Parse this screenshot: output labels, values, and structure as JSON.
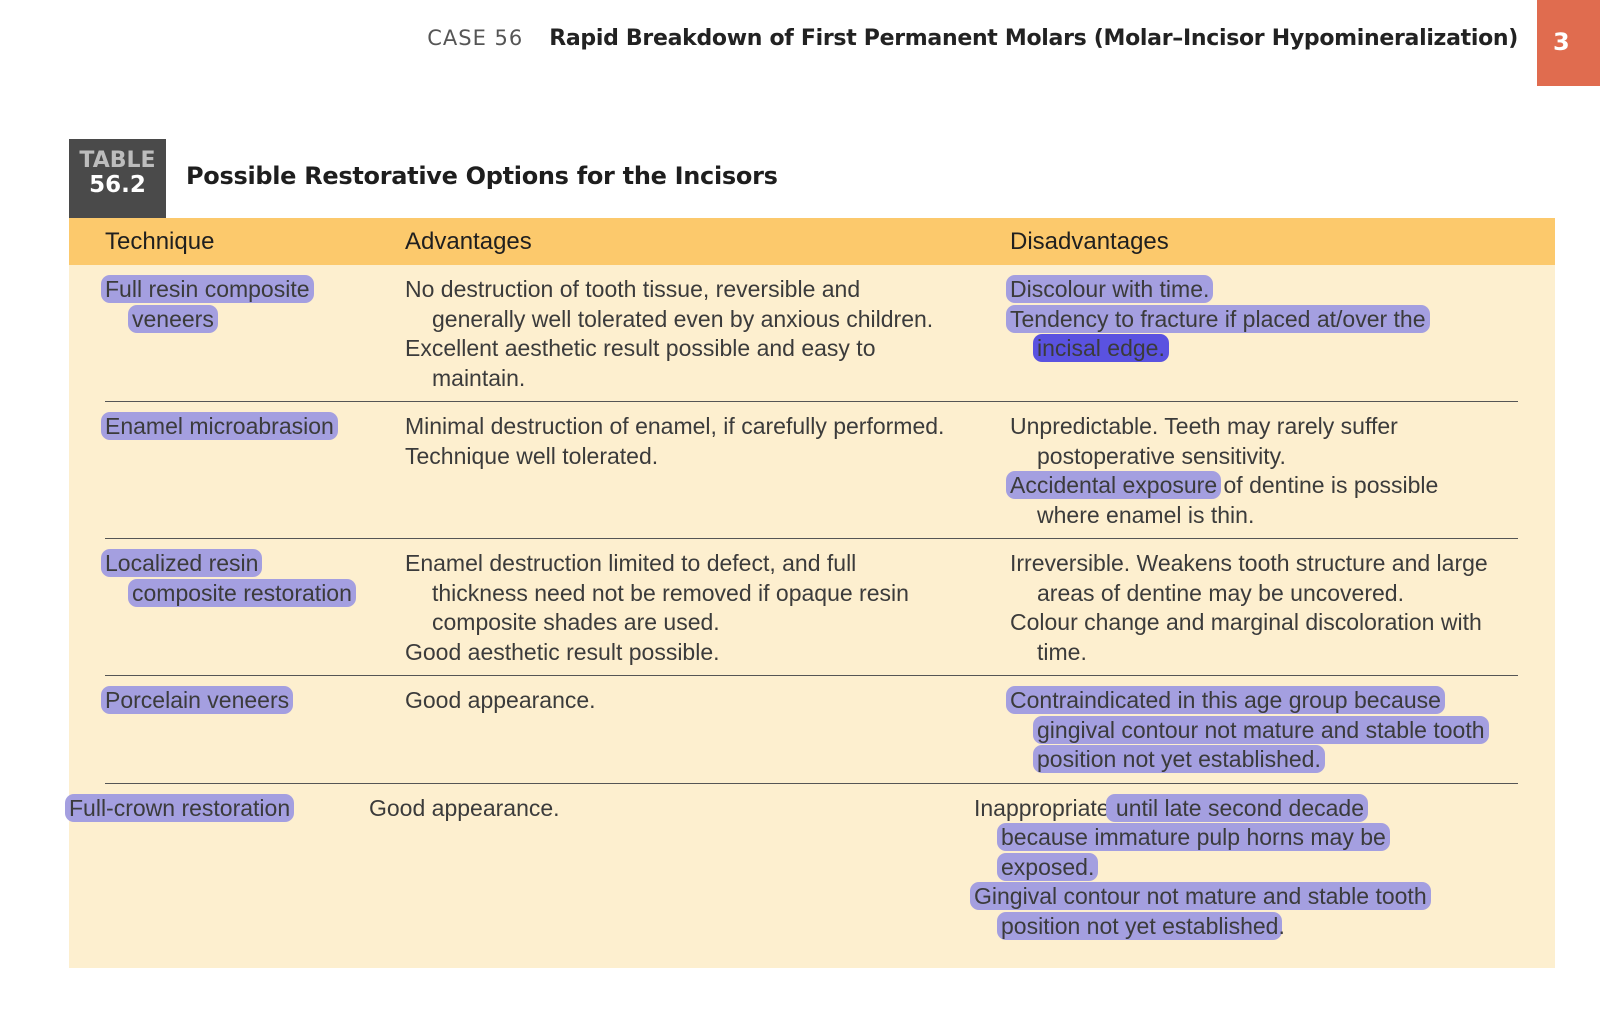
{
  "running_header": {
    "case_label": "CASE  56",
    "title": "Rapid Breakdown of First Permanent Molars (Molar–Incisor Hypomineralization)",
    "page_number": "3"
  },
  "table": {
    "badge_label": "TABLE",
    "badge_number": "56.2",
    "title": "Possible Restorative Options for the Incisors",
    "columns": [
      "Technique",
      "Advantages",
      "Disadvantages"
    ],
    "colors": {
      "header": "#fcc96c",
      "body": "#fdefcf",
      "highlight": "#a49fe0",
      "highlight_strong": "#5a52e0",
      "page_tab": "#e06c4f"
    },
    "rows": [
      {
        "technique": [
          {
            "indent": false,
            "segs": [
              {
                "t": "Full resin composite",
                "h": "hl"
              }
            ]
          },
          {
            "indent": true,
            "segs": [
              {
                "t": "veneers",
                "h": "hl"
              }
            ]
          }
        ],
        "advantages": [
          {
            "indent": false,
            "segs": [
              {
                "t": "No destruction of tooth tissue, reversible and",
                "h": ""
              }
            ]
          },
          {
            "indent": true,
            "segs": [
              {
                "t": "generally well tolerated even by anxious children.",
                "h": ""
              }
            ]
          },
          {
            "indent": false,
            "segs": [
              {
                "t": "Excellent aesthetic result possible and easy to",
                "h": ""
              }
            ]
          },
          {
            "indent": true,
            "segs": [
              {
                "t": "maintain.",
                "h": ""
              }
            ]
          }
        ],
        "disadvantages": [
          {
            "indent": false,
            "segs": [
              {
                "t": "Discolour with time.",
                "h": "hl"
              }
            ]
          },
          {
            "indent": false,
            "segs": [
              {
                "t": "Tendency to fracture if placed at/over the",
                "h": "hl"
              }
            ]
          },
          {
            "indent": true,
            "segs": [
              {
                "t": "incisal edge.",
                "h": "hl2"
              }
            ]
          }
        ]
      },
      {
        "technique": [
          {
            "indent": false,
            "segs": [
              {
                "t": "Enamel microabrasion",
                "h": "hl"
              }
            ]
          }
        ],
        "advantages": [
          {
            "indent": false,
            "segs": [
              {
                "t": "Minimal destruction of enamel, if carefully performed.",
                "h": ""
              }
            ]
          },
          {
            "indent": false,
            "segs": [
              {
                "t": "Technique well tolerated.",
                "h": ""
              }
            ]
          }
        ],
        "disadvantages": [
          {
            "indent": false,
            "segs": [
              {
                "t": "Unpredictable. Teeth may rarely suffer",
                "h": ""
              }
            ]
          },
          {
            "indent": true,
            "segs": [
              {
                "t": "postoperative sensitivity.",
                "h": ""
              }
            ]
          },
          {
            "indent": false,
            "segs": [
              {
                "t": "Accidental exposure",
                "h": "hl"
              },
              {
                "t": " of dentine is possible",
                "h": ""
              }
            ]
          },
          {
            "indent": true,
            "segs": [
              {
                "t": "where enamel is thin.",
                "h": ""
              }
            ]
          }
        ]
      },
      {
        "technique": [
          {
            "indent": false,
            "segs": [
              {
                "t": "Localized resin",
                "h": "hl"
              }
            ]
          },
          {
            "indent": true,
            "segs": [
              {
                "t": "composite restoration",
                "h": "hl"
              }
            ]
          }
        ],
        "advantages": [
          {
            "indent": false,
            "segs": [
              {
                "t": "Enamel destruction limited to defect, and full",
                "h": ""
              }
            ]
          },
          {
            "indent": true,
            "segs": [
              {
                "t": "thickness need not be removed if opaque resin",
                "h": ""
              }
            ]
          },
          {
            "indent": true,
            "segs": [
              {
                "t": "composite shades are used.",
                "h": ""
              }
            ]
          },
          {
            "indent": false,
            "segs": [
              {
                "t": "Good aesthetic result possible.",
                "h": ""
              }
            ]
          }
        ],
        "disadvantages": [
          {
            "indent": false,
            "segs": [
              {
                "t": "Irreversible. Weakens tooth structure and large",
                "h": ""
              }
            ]
          },
          {
            "indent": true,
            "segs": [
              {
                "t": "areas of dentine may be uncovered.",
                "h": ""
              }
            ]
          },
          {
            "indent": false,
            "segs": [
              {
                "t": "Colour change and marginal discoloration with",
                "h": ""
              }
            ]
          },
          {
            "indent": true,
            "segs": [
              {
                "t": "time.",
                "h": ""
              }
            ]
          }
        ]
      },
      {
        "technique": [
          {
            "indent": false,
            "segs": [
              {
                "t": "Porcelain veneers",
                "h": "hl"
              }
            ]
          }
        ],
        "advantages": [
          {
            "indent": false,
            "segs": [
              {
                "t": "Good appearance.",
                "h": ""
              }
            ]
          }
        ],
        "disadvantages": [
          {
            "indent": false,
            "segs": [
              {
                "t": "Contraindicated in this age group because",
                "h": "hl"
              }
            ]
          },
          {
            "indent": true,
            "segs": [
              {
                "t": "gingival contour not mature and stable tooth",
                "h": "hl"
              }
            ]
          },
          {
            "indent": true,
            "segs": [
              {
                "t": "position not yet established.",
                "h": "hl"
              }
            ]
          }
        ]
      },
      {
        "technique": [
          {
            "indent": false,
            "segs": [
              {
                "t": "Full-crown restoration",
                "h": "hl"
              }
            ]
          }
        ],
        "advantages": [
          {
            "indent": false,
            "segs": [
              {
                "t": "Good appearance.",
                "h": ""
              }
            ]
          }
        ],
        "disadvantages": [
          {
            "indent": false,
            "segs": [
              {
                "t": "Inappropriate",
                "h": ""
              },
              {
                "t": " until late second decade",
                "h": "hl"
              }
            ]
          },
          {
            "indent": true,
            "segs": [
              {
                "t": "because immature pulp horns may be",
                "h": "hl"
              }
            ]
          },
          {
            "indent": true,
            "segs": [
              {
                "t": "exposed.",
                "h": "hl"
              }
            ]
          },
          {
            "indent": false,
            "segs": [
              {
                "t": "Gingival contour not mature and stable tooth",
                "h": "hl"
              }
            ]
          },
          {
            "indent": true,
            "segs": [
              {
                "t": "position not yet established",
                "h": "hl"
              },
              {
                "t": ".",
                "h": ""
              }
            ]
          }
        ]
      }
    ]
  }
}
